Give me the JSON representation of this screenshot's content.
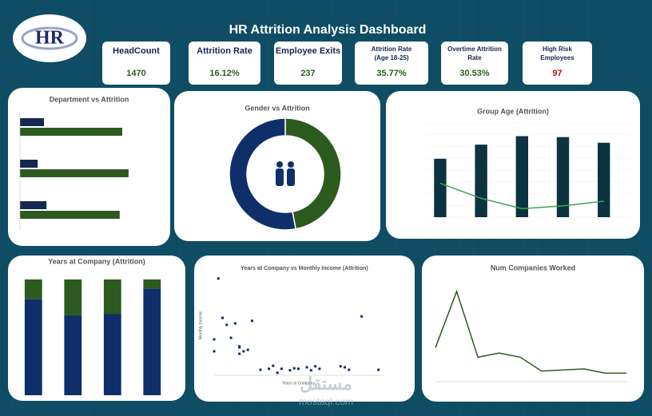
{
  "logo": "HR",
  "title": "HR Attrition Analysis Dashboard",
  "kpis": [
    {
      "label": "HeadCount",
      "value": "1470"
    },
    {
      "label": "Attrition Rate",
      "value": "16.12%"
    },
    {
      "label": "Employee Exits",
      "value": "237"
    },
    {
      "label": "Attrition Rate (Age 18-25)",
      "value": "35.77%"
    },
    {
      "label": "Overtime Attrition Rate",
      "value": "30.53%"
    },
    {
      "label": "High Risk Employees",
      "value": "97"
    }
  ],
  "watermark": [
    "مستقل",
    "mostaql.com"
  ],
  "chart_data": [
    {
      "type": "hbar",
      "title": "Department  vs Attrition",
      "categories": [
        null,
        null,
        null
      ],
      "xlim": [
        0,
        100
      ],
      "series": [
        {
          "color": "#15284f",
          "values": [
            19,
            14,
            21
          ]
        },
        {
          "color": "#2d5a1e",
          "values": [
            81,
            86,
            79
          ]
        }
      ]
    },
    {
      "type": "donut",
      "title": "Gender vs Attrition",
      "values": [
        47,
        53
      ],
      "colors": [
        "#2d5a1e",
        "#0f2f6b"
      ]
    },
    {
      "type": "combo",
      "title": "Group Age (Attrition)",
      "categories": [
        null,
        null,
        null,
        null,
        null
      ],
      "ylim": [
        0,
        100
      ],
      "series": [
        {
          "color": "#0b3340",
          "values": [
            62,
            77,
            86,
            85,
            79
          ]
        },
        {
          "color": "#3fa34a",
          "line": true,
          "values": [
            36,
            20,
            9,
            12,
            17
          ]
        }
      ]
    },
    {
      "type": "stacked",
      "title": "Years at Company (Attrition)",
      "categories": [
        null,
        null,
        null,
        null
      ],
      "ylim": [
        0,
        100
      ],
      "series": [
        {
          "color": "#0f2f6b",
          "values": [
            83,
            69,
            70,
            92
          ]
        },
        {
          "color": "#2d5a1e",
          "values": [
            17,
            31,
            30,
            8
          ]
        }
      ]
    },
    {
      "type": "scatter",
      "title": "Years at Company vs Monthly Income (Attrition)",
      "xlabel": "Years at Company",
      "ylabel": "Monthly Income",
      "xlim": [
        0,
        40
      ],
      "ylim": [
        0,
        20000
      ],
      "color": "#0f2f6b",
      "x": [
        0,
        0,
        2,
        3,
        4,
        5,
        6,
        6,
        6,
        7,
        8,
        9,
        11,
        13,
        14,
        15,
        16,
        18,
        19,
        20,
        22,
        23,
        24,
        25,
        30,
        31,
        32,
        39,
        1,
        35
      ],
      "values": [
        4800,
        7200,
        11500,
        10100,
        7500,
        10400,
        4300,
        5800,
        5600,
        4800,
        5100,
        10900,
        1100,
        1300,
        1900,
        500,
        1300,
        1000,
        1400,
        1300,
        1600,
        1000,
        1800,
        1300,
        1800,
        1600,
        1100,
        1100,
        19400,
        11800
      ]
    },
    {
      "type": "line",
      "title": "Num Companies Worked",
      "x": [
        0,
        1,
        2,
        3,
        4,
        5,
        6,
        7,
        8,
        9
      ],
      "xlim": [
        0,
        9
      ],
      "ylim": [
        0,
        100
      ],
      "color": "#2d5a1e",
      "values": [
        32,
        85,
        23,
        27,
        23,
        10,
        11,
        12,
        8,
        8
      ]
    }
  ]
}
